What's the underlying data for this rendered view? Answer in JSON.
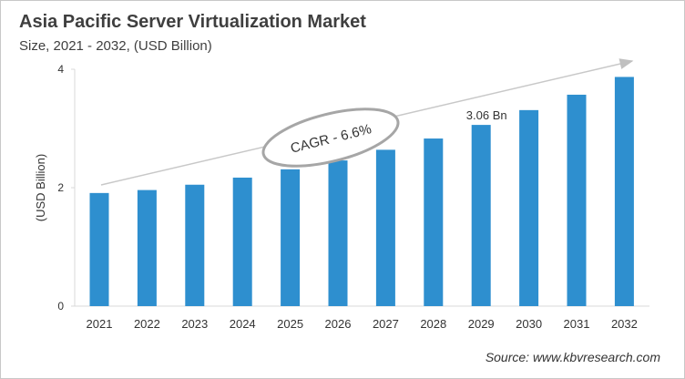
{
  "chart_data": {
    "type": "bar",
    "title": "Asia Pacific Server Virtualization Market",
    "subtitle": "Size, 2021 - 2032, (USD Billion)",
    "xlabel": "",
    "ylabel": "(USD Billion)",
    "ylim": [
      0,
      4
    ],
    "yticks": [
      0,
      2,
      4
    ],
    "grid": false,
    "categories": [
      "2021",
      "2022",
      "2023",
      "2024",
      "2025",
      "2026",
      "2027",
      "2028",
      "2029",
      "2030",
      "2031",
      "2032"
    ],
    "values": [
      1.91,
      1.96,
      2.05,
      2.17,
      2.31,
      2.46,
      2.64,
      2.83,
      3.06,
      3.31,
      3.57,
      3.87
    ],
    "bar_color": "#2e8fcf",
    "annotations": {
      "data_label": {
        "category": "2029",
        "text": "3.06 Bn"
      },
      "cagr": "CAGR - 6.6%"
    },
    "source": "Source: www.kbvresearch.com"
  }
}
